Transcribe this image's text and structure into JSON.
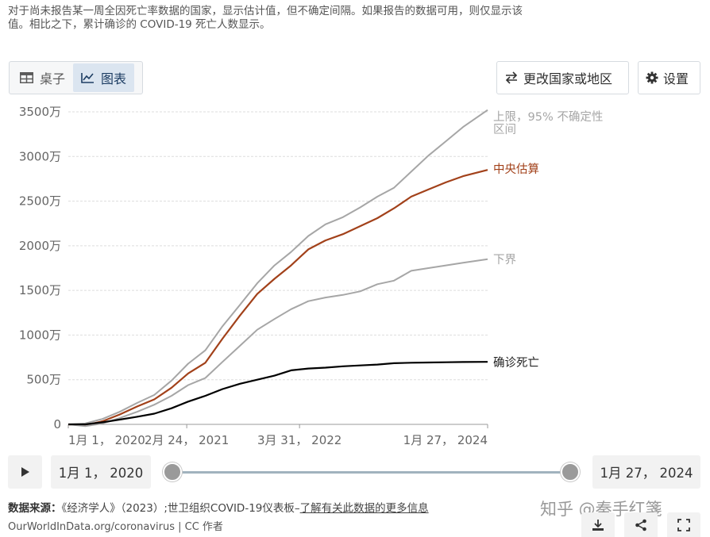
{
  "note": "对于尚未报告某一周全因死亡率数据的国家，显示估计值，但不确定间隔。如果报告的数据可用，则仅显示该值。相比之下，累计确诊的 COVID-19 死亡人数显示。",
  "tabs": [
    {
      "label": "桌子",
      "icon": "table-icon",
      "active": false
    },
    {
      "label": "图表",
      "icon": "line-chart-icon",
      "active": true
    }
  ],
  "buttons": {
    "change_country": "更改国家或地区",
    "change_country_icon": "swap-arrows-icon",
    "settings": "设置",
    "settings_icon": "gear-icon"
  },
  "chart_data": {
    "type": "line",
    "title": "",
    "xlabel": "",
    "ylabel": "",
    "ylim": [
      0,
      35000000
    ],
    "y_ticks": [
      {
        "value": 0,
        "label": "0"
      },
      {
        "value": 5000000,
        "label": "500万"
      },
      {
        "value": 10000000,
        "label": "1000万"
      },
      {
        "value": 15000000,
        "label": "1500万"
      },
      {
        "value": 20000000,
        "label": "2000万"
      },
      {
        "value": 25000000,
        "label": "2500万"
      },
      {
        "value": 30000000,
        "label": "3000万"
      },
      {
        "value": 35000000,
        "label": "3500万"
      }
    ],
    "x_range": [
      "2020-01-01",
      "2024-01-27"
    ],
    "x_ticks": [
      {
        "date": "2020-01-01",
        "label": "1月 1， 2020"
      },
      {
        "date": "2021-02-24",
        "label": "2月 24， 2021"
      },
      {
        "date": "2022-03-31",
        "label": "3月 31， 2022"
      },
      {
        "date": "2024-01-27",
        "label": "1月 27， 2024"
      }
    ],
    "grid": "horizontal dashed",
    "legend": "inline labels at right end of lines",
    "series": [
      {
        "name": "上限，95% 不确定性区间",
        "color": "#a6a6a6",
        "points": [
          [
            "2020-01-01",
            0
          ],
          [
            "2020-03-01",
            100000
          ],
          [
            "2020-05-01",
            600000
          ],
          [
            "2020-07-01",
            1400000
          ],
          [
            "2020-09-01",
            2400000
          ],
          [
            "2020-11-01",
            3300000
          ],
          [
            "2021-01-01",
            4900000
          ],
          [
            "2021-03-01",
            6800000
          ],
          [
            "2021-05-01",
            8300000
          ],
          [
            "2021-07-01",
            11000000
          ],
          [
            "2021-09-01",
            13400000
          ],
          [
            "2021-11-01",
            15800000
          ],
          [
            "2022-01-01",
            17800000
          ],
          [
            "2022-03-01",
            19300000
          ],
          [
            "2022-05-01",
            21100000
          ],
          [
            "2022-07-01",
            22400000
          ],
          [
            "2022-09-01",
            23200000
          ],
          [
            "2022-11-01",
            24300000
          ],
          [
            "2023-01-01",
            25500000
          ],
          [
            "2023-03-01",
            26500000
          ],
          [
            "2023-05-01",
            28300000
          ],
          [
            "2023-07-01",
            30100000
          ],
          [
            "2023-09-01",
            31700000
          ],
          [
            "2023-11-01",
            33300000
          ],
          [
            "2024-01-27",
            35200000
          ]
        ]
      },
      {
        "name": "中央估算",
        "color": "#a2411a",
        "points": [
          [
            "2020-01-01",
            0
          ],
          [
            "2020-03-01",
            -100000
          ],
          [
            "2020-05-01",
            350000
          ],
          [
            "2020-07-01",
            1100000
          ],
          [
            "2020-09-01",
            2000000
          ],
          [
            "2020-11-01",
            2800000
          ],
          [
            "2021-01-01",
            4100000
          ],
          [
            "2021-03-01",
            5700000
          ],
          [
            "2021-05-01",
            6900000
          ],
          [
            "2021-07-01",
            9600000
          ],
          [
            "2021-09-01",
            12200000
          ],
          [
            "2021-11-01",
            14600000
          ],
          [
            "2022-01-01",
            16300000
          ],
          [
            "2022-03-01",
            17800000
          ],
          [
            "2022-05-01",
            19600000
          ],
          [
            "2022-07-01",
            20600000
          ],
          [
            "2022-09-01",
            21300000
          ],
          [
            "2022-11-01",
            22200000
          ],
          [
            "2023-01-01",
            23100000
          ],
          [
            "2023-03-01",
            24200000
          ],
          [
            "2023-05-01",
            25500000
          ],
          [
            "2023-07-01",
            26300000
          ],
          [
            "2023-09-01",
            27100000
          ],
          [
            "2023-11-01",
            27800000
          ],
          [
            "2024-01-27",
            28500000
          ]
        ]
      },
      {
        "name": "下界",
        "color": "#a6a6a6",
        "points": [
          [
            "2020-01-01",
            0
          ],
          [
            "2020-03-01",
            -200000
          ],
          [
            "2020-05-01",
            100000
          ],
          [
            "2020-07-01",
            700000
          ],
          [
            "2020-09-01",
            1400000
          ],
          [
            "2020-11-01",
            2200000
          ],
          [
            "2021-01-01",
            3200000
          ],
          [
            "2021-03-01",
            4400000
          ],
          [
            "2021-05-01",
            5200000
          ],
          [
            "2021-07-01",
            7000000
          ],
          [
            "2021-09-01",
            8800000
          ],
          [
            "2021-11-01",
            10600000
          ],
          [
            "2022-01-01",
            11800000
          ],
          [
            "2022-03-01",
            12900000
          ],
          [
            "2022-05-01",
            13800000
          ],
          [
            "2022-07-01",
            14200000
          ],
          [
            "2022-09-01",
            14500000
          ],
          [
            "2022-11-01",
            14900000
          ],
          [
            "2023-01-01",
            15700000
          ],
          [
            "2023-03-01",
            16100000
          ],
          [
            "2023-05-01",
            17200000
          ],
          [
            "2023-07-01",
            17500000
          ],
          [
            "2023-09-01",
            17800000
          ],
          [
            "2023-11-01",
            18100000
          ],
          [
            "2024-01-27",
            18500000
          ]
        ]
      },
      {
        "name": "确诊死亡",
        "color": "#000000",
        "points": [
          [
            "2020-01-01",
            0
          ],
          [
            "2020-03-01",
            0
          ],
          [
            "2020-05-01",
            230000
          ],
          [
            "2020-07-01",
            530000
          ],
          [
            "2020-09-01",
            850000
          ],
          [
            "2020-11-01",
            1200000
          ],
          [
            "2021-01-01",
            1800000
          ],
          [
            "2021-03-01",
            2550000
          ],
          [
            "2021-05-01",
            3200000
          ],
          [
            "2021-07-01",
            3950000
          ],
          [
            "2021-09-01",
            4550000
          ],
          [
            "2021-11-01",
            5000000
          ],
          [
            "2022-01-01",
            5450000
          ],
          [
            "2022-03-01",
            6050000
          ],
          [
            "2022-05-01",
            6250000
          ],
          [
            "2022-07-01",
            6350000
          ],
          [
            "2022-09-01",
            6500000
          ],
          [
            "2022-11-01",
            6600000
          ],
          [
            "2023-01-01",
            6700000
          ],
          [
            "2023-03-01",
            6850000
          ],
          [
            "2023-05-01",
            6900000
          ],
          [
            "2023-07-01",
            6930000
          ],
          [
            "2023-09-01",
            6960000
          ],
          [
            "2023-11-01",
            6980000
          ],
          [
            "2024-01-27",
            7000000
          ]
        ]
      }
    ]
  },
  "timeline": {
    "play_icon": "play-icon",
    "start_label": "1月 1， 2020",
    "end_label": "1月 27， 2024"
  },
  "source": {
    "prefix": "数据来源：",
    "text": "《经济学人》（2023）;世卫组织COVID-19仪表板–",
    "link": "了解有关此数据的更多信息",
    "site": "OurWorldInData.org/coronavirus",
    "license": " | CC 作者"
  },
  "watermark": "知乎 @秦手红箋",
  "actions": [
    {
      "name": "download",
      "icon": "download-icon"
    },
    {
      "name": "share",
      "icon": "share-icon"
    },
    {
      "name": "expand",
      "icon": "expand-icon"
    }
  ]
}
